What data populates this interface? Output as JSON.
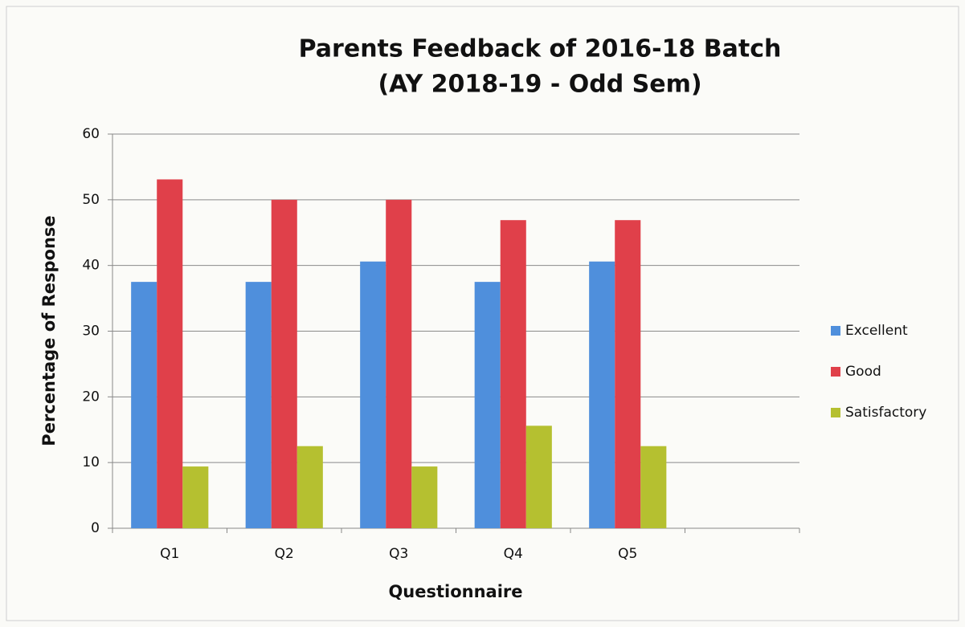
{
  "chart_data": {
    "type": "bar",
    "title": "Parents Feedback of 2016-18 Batch",
    "subtitle": "(AY 2018-19 - Odd Sem)",
    "x_label": "Questionnaire",
    "y_label": "Percentage of  Response",
    "categories": [
      "Q1",
      "Q2",
      "Q3",
      "Q4",
      "Q5",
      null
    ],
    "series": [
      {
        "name": "Excellent",
        "color": "#4f8fdc",
        "values": [
          37.5,
          37.5,
          40.6,
          37.5,
          40.6,
          null
        ]
      },
      {
        "name": "Good",
        "color": "#e0404a",
        "values": [
          53.1,
          50,
          50,
          46.9,
          46.9,
          null
        ]
      },
      {
        "name": "Satisfactory",
        "color": "#b5c030",
        "values": [
          9.4,
          12.5,
          9.4,
          15.6,
          12.5,
          null
        ]
      }
    ],
    "ylim": [
      0,
      60
    ],
    "yticks": [
      0,
      10,
      20,
      30,
      40,
      50,
      60
    ],
    "grid": true,
    "legend": "right"
  }
}
